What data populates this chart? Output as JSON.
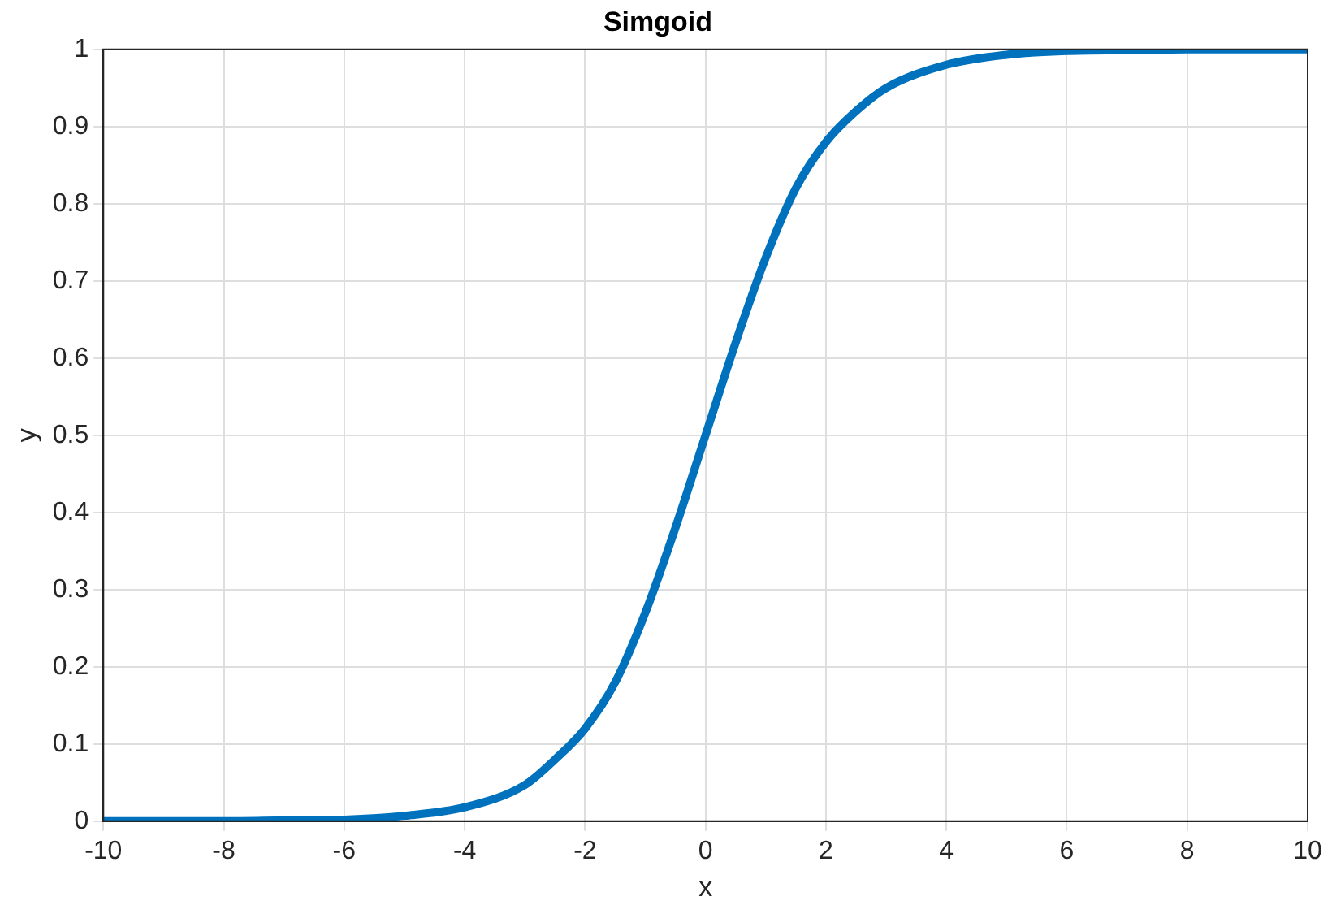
{
  "chart_data": {
    "type": "line",
    "title": "Simgoid",
    "xlabel": "x",
    "ylabel": "y",
    "x": [
      -10,
      -9,
      -8,
      -7,
      -6,
      -5,
      -4,
      -3,
      -2.5,
      -2,
      -1.5,
      -1,
      -0.5,
      0,
      0.5,
      1,
      1.5,
      2,
      2.5,
      3,
      4,
      5,
      6,
      7,
      8,
      9,
      10
    ],
    "series": [
      {
        "color": "#0072bd",
        "values": [
          0,
          0,
          0,
          0.001,
          0.002,
          0.007,
          0.018,
          0.047,
          0.08,
          0.12,
          0.18,
          0.27,
          0.38,
          0.5,
          0.62,
          0.73,
          0.82,
          0.88,
          0.92,
          0.95,
          0.98,
          0.993,
          0.998,
          0.999,
          1,
          1,
          1
        ]
      }
    ],
    "xlim": [
      -10,
      10
    ],
    "xticks": [
      -10,
      -8,
      -6,
      -4,
      -2,
      0,
      2,
      4,
      6,
      8,
      10
    ],
    "ylim": [
      0,
      1
    ],
    "yticks": [
      0,
      0.1,
      0.2,
      0.3,
      0.4,
      0.5,
      0.6,
      0.7,
      0.8,
      0.9,
      1
    ],
    "grid": true,
    "legend": false,
    "marker": "none",
    "line_style": "solid"
  }
}
